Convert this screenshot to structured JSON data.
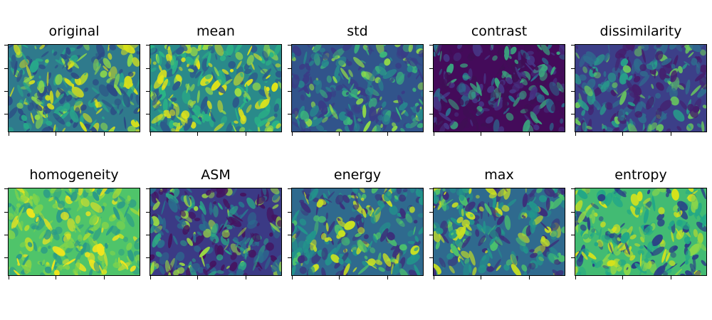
{
  "panels": [
    {
      "title": "original",
      "colors": {
        "base": "#2f7a8c",
        "dark": "#2c4c85",
        "mid": "#27a88a",
        "bright": "#8ed84a",
        "hot": "#d8e219"
      }
    },
    {
      "title": "mean",
      "colors": {
        "base": "#2a8a8a",
        "dark": "#2c5a8a",
        "mid": "#2ab585",
        "bright": "#9bdc44",
        "hot": "#e2e418"
      }
    },
    {
      "title": "std",
      "colors": {
        "base": "#31548b",
        "dark": "#3a3b86",
        "mid": "#27878d",
        "bright": "#3cba7a",
        "hot": "#8ed84a"
      }
    },
    {
      "title": "contrast",
      "colors": {
        "base": "#440b5a",
        "dark": "#3f0f55",
        "mid": "#463483",
        "bright": "#2c6b8e",
        "hot": "#3aa57e"
      }
    },
    {
      "title": "dissimilarity",
      "colors": {
        "base": "#3c3f88",
        "dark": "#451e6c",
        "mid": "#2f6b8e",
        "bright": "#27a08a",
        "hot": "#6acb5c"
      }
    },
    {
      "title": "homogeneity",
      "colors": {
        "base": "#4fc46a",
        "dark": "#2a9a88",
        "mid": "#7ed34c",
        "bright": "#b7de2d",
        "hot": "#f1e51d"
      }
    },
    {
      "title": "ASM",
      "colors": {
        "base": "#3b3a85",
        "dark": "#45135f",
        "mid": "#2a6f8e",
        "bright": "#2aa786",
        "hot": "#9ad843"
      }
    },
    {
      "title": "energy",
      "colors": {
        "base": "#2f6a8e",
        "dark": "#3c2e7a",
        "mid": "#22958b",
        "bright": "#4cc26c",
        "hot": "#c8e022"
      }
    },
    {
      "title": "max",
      "colors": {
        "base": "#2f6a8e",
        "dark": "#3c2e7a",
        "mid": "#22958b",
        "bright": "#4cc26c",
        "hot": "#c8e022"
      }
    },
    {
      "title": "entropy",
      "colors": {
        "base": "#42bb73",
        "dark": "#2b3f86",
        "mid": "#22a787",
        "bright": "#8ad64a",
        "hot": "#d6e21b"
      }
    }
  ]
}
